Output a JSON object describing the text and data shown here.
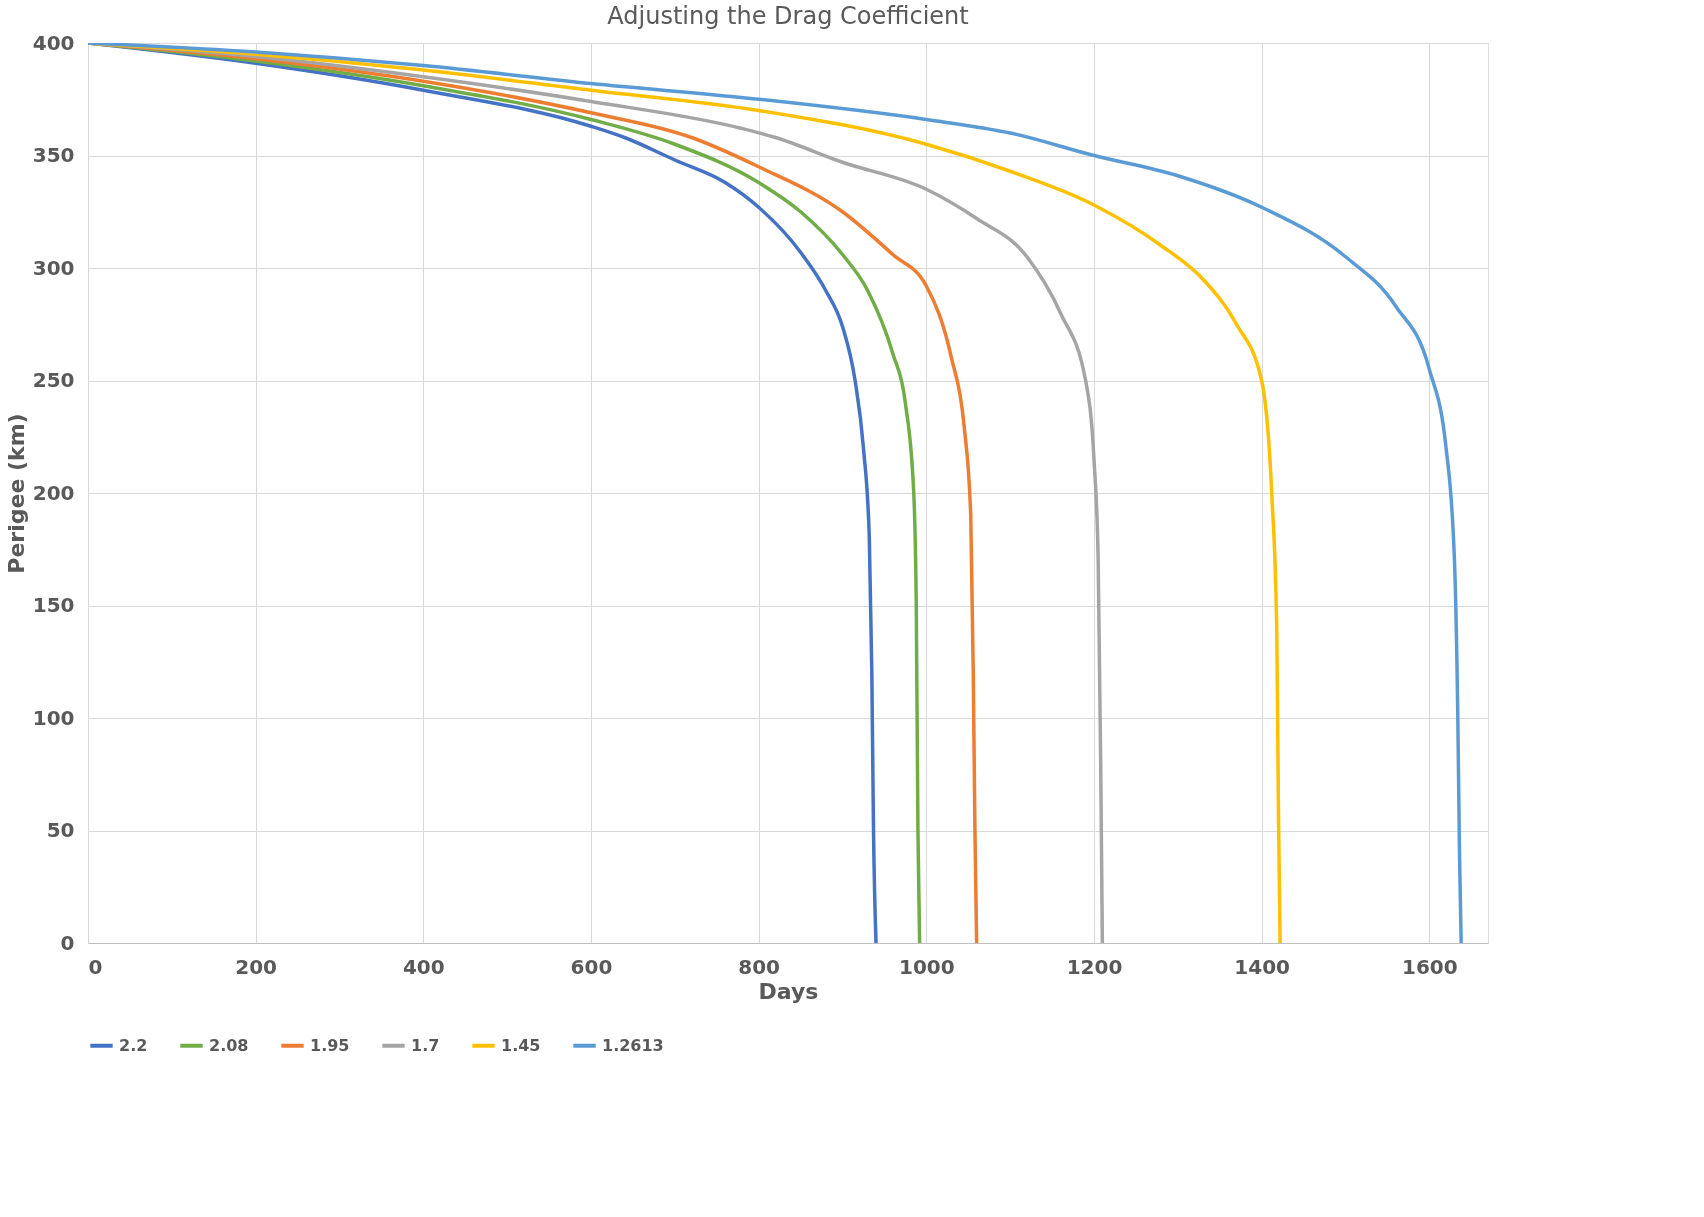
{
  "chart_data": {
    "type": "line",
    "title": "Adjusting the Drag Coefficient",
    "xlabel": "Days",
    "ylabel": "Perigee (km)",
    "xlim": [
      0,
      1670
    ],
    "xticks": [
      0,
      200,
      400,
      600,
      800,
      1000,
      1200,
      1400,
      1600
    ],
    "ylim": [
      0,
      400
    ],
    "yticks": [
      0,
      50,
      100,
      150,
      200,
      250,
      300,
      350,
      400
    ],
    "grid": true,
    "legend": "bottom",
    "marker": "none",
    "line_style": "solid",
    "series": [
      {
        "name": "2.2",
        "color": "#4472c4",
        "x": [
          0,
          200,
          400,
          600,
          640,
          700,
          760,
          800,
          850,
          880,
          900,
          915,
          925,
          932,
          935,
          937,
          940
        ],
        "values": [
          400,
          391,
          379,
          363,
          358,
          348,
          338,
          327,
          307,
          290,
          274,
          250,
          220,
          180,
          120,
          50,
          0
        ]
      },
      {
        "name": "2.08",
        "color": "#70ad47",
        "x": [
          0,
          200,
          400,
          600,
          700,
          800,
          850,
          900,
          930,
          960,
          975,
          985,
          988,
          990,
          992
        ],
        "values": [
          400,
          392,
          381,
          366,
          355,
          338,
          325,
          306,
          290,
          262,
          240,
          200,
          150,
          50,
          0
        ]
      },
      {
        "name": "1.95",
        "color": "#ed7d31",
        "x": [
          0,
          200,
          400,
          600,
          720,
          800,
          900,
          960,
          1000,
          1030,
          1045,
          1053,
          1056,
          1058,
          1060
        ],
        "values": [
          400,
          393,
          383,
          369,
          358,
          345,
          325,
          306,
          292,
          260,
          230,
          190,
          120,
          50,
          0
        ]
      },
      {
        "name": "1.7",
        "color": "#a5a5a5",
        "x": [
          0,
          200,
          400,
          600,
          780,
          820,
          900,
          1000,
          1060,
          1120,
          1160,
          1190,
          1200,
          1205,
          1208,
          1210
        ],
        "values": [
          400,
          394,
          385,
          374,
          362,
          358,
          347,
          335,
          322,
          305,
          280,
          250,
          215,
          170,
          80,
          0
        ]
      },
      {
        "name": "1.45",
        "color": "#ffc000",
        "x": [
          0,
          200,
          400,
          600,
          800,
          1000,
          1100,
          1200,
          1280,
          1330,
          1370,
          1400,
          1412,
          1418,
          1420,
          1422
        ],
        "values": [
          400,
          395,
          388,
          379,
          370,
          355,
          343,
          328,
          310,
          295,
          275,
          250,
          200,
          140,
          60,
          0
        ]
      },
      {
        "name": "1.2613",
        "color": "#5b9bd5",
        "x": [
          0,
          200,
          400,
          600,
          800,
          1000,
          1100,
          1200,
          1300,
          1400,
          1500,
          1560,
          1600,
          1620,
          1630,
          1634,
          1636,
          1638
        ],
        "values": [
          400,
          396,
          390,
          382,
          375,
          366,
          360,
          350,
          341,
          327,
          305,
          283,
          255,
          220,
          170,
          100,
          40,
          0
        ]
      }
    ]
  }
}
